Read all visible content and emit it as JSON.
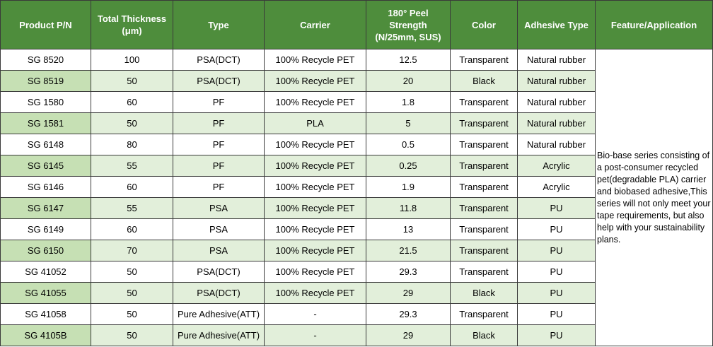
{
  "table": {
    "header": [
      "Product P/N",
      "Total Thickness (μm)",
      "Type",
      "Carrier",
      "180° Peel Strength (N/25mm, SUS)",
      "Color",
      "Adhesive Type",
      "Feature/Application"
    ],
    "rows": [
      [
        "SG 8520",
        "100",
        "PSA(DCT)",
        "100% Recycle PET",
        "12.5",
        "Transparent",
        "Natural rubber"
      ],
      [
        "SG 8519",
        "50",
        "PSA(DCT)",
        "100% Recycle PET",
        "20",
        "Black",
        "Natural rubber"
      ],
      [
        "SG 1580",
        "60",
        "PF",
        "100% Recycle PET",
        "1.8",
        "Transparent",
        "Natural rubber"
      ],
      [
        "SG 1581",
        "50",
        "PF",
        "PLA",
        "5",
        "Transparent",
        "Natural rubber"
      ],
      [
        "SG 6148",
        "80",
        "PF",
        "100% Recycle PET",
        "0.5",
        "Transparent",
        "Natural rubber"
      ],
      [
        "SG 6145",
        "55",
        "PF",
        "100% Recycle PET",
        "0.25",
        "Transparent",
        "Acrylic"
      ],
      [
        "SG 6146",
        "60",
        "PF",
        "100% Recycle PET",
        "1.9",
        "Transparent",
        "Acrylic"
      ],
      [
        "SG 6147",
        "55",
        "PSA",
        "100% Recycle PET",
        "11.8",
        "Transparent",
        "PU"
      ],
      [
        "SG 6149",
        "60",
        "PSA",
        "100% Recycle PET",
        "13",
        "Transparent",
        "PU"
      ],
      [
        "SG 6150",
        "70",
        "PSA",
        "100% Recycle PET",
        "21.5",
        "Transparent",
        "PU"
      ],
      [
        "SG 41052",
        "50",
        "PSA(DCT)",
        "100% Recycle PET",
        "29.3",
        "Transparent",
        "PU"
      ],
      [
        "SG 41055",
        "50",
        "PSA(DCT)",
        "100% Recycle PET",
        "29",
        "Black",
        "PU"
      ],
      [
        "SG 41058",
        "50",
        "Pure Adhesive(ATT)",
        "-",
        "29.3",
        "Transparent",
        "PU"
      ],
      [
        "SG 4105B",
        "50",
        "Pure Adhesive(ATT)",
        "-",
        "29",
        "Black",
        "PU"
      ]
    ],
    "feature": "Bio-base series consisting of a post-consumer recycled pet(degradable PLA) carrier and  biobased adhesive,This series will not only meet your tape requirements, but also help with your sustainability plans."
  }
}
